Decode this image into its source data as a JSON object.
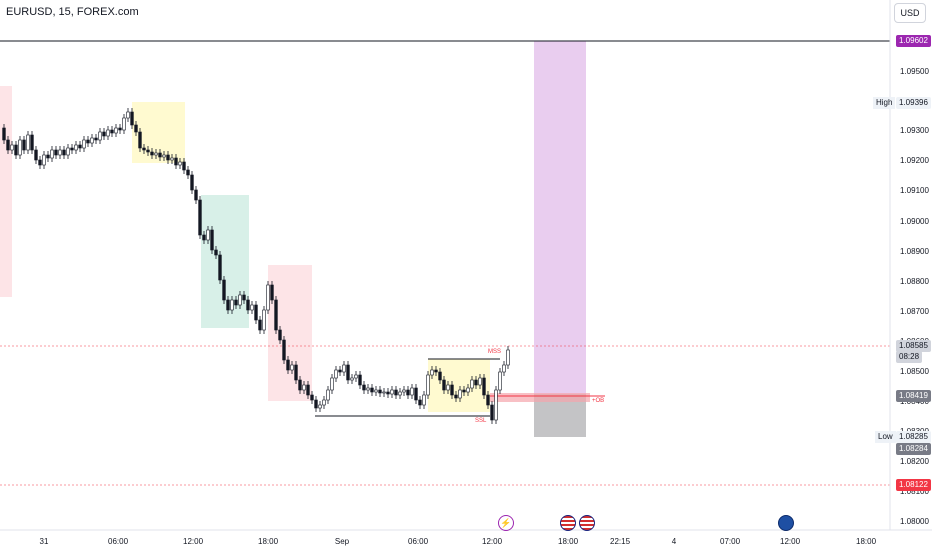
{
  "header": {
    "symbol": "EURUSD, 15, FOREX.com",
    "currency": "USD"
  },
  "price_axis": {
    "ticks": [
      "1.09500",
      "1.09400",
      "1.09300",
      "1.09200",
      "1.09100",
      "1.09000",
      "1.08900",
      "1.08800",
      "1.08700",
      "1.08600",
      "1.08500",
      "1.08400",
      "1.08300",
      "1.08200",
      "1.08100",
      "1.08000"
    ],
    "tags": {
      "target": "1.09602",
      "high": "1.09396",
      "current": "1.08585",
      "countdown": "08:28",
      "entry": "1.08419",
      "low": "1.08285",
      "low2": "1.08284",
      "stop": "1.08122"
    },
    "high_label": "High",
    "low_label": "Low"
  },
  "time_axis": [
    "31",
    "06:00",
    "12:00",
    "18:00",
    "Sep",
    "06:00",
    "12:00",
    "18:00",
    "22:15",
    "4",
    "07:00",
    "12:00",
    "18:00"
  ],
  "annotations": {
    "mss": "MSS",
    "ssl": "SSL",
    "ob": "+OB"
  },
  "colors": {
    "up": "#131722",
    "down": "#131722",
    "target": "#9c27b0",
    "stop": "#f23645",
    "long_zone": "#e1bee7",
    "risk_zone": "#bdbdbd"
  },
  "events": [
    "lightning-icon",
    "us-flag-icon",
    "us-flag-icon",
    "globe-icon"
  ]
}
